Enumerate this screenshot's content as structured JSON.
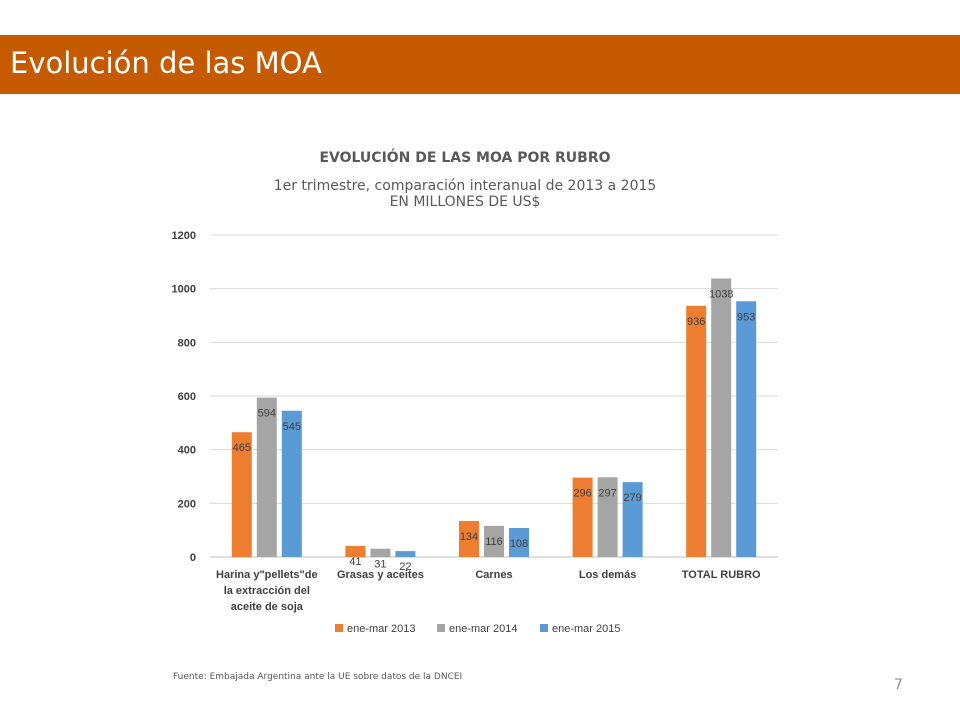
{
  "header": {
    "title": "Evolución de las MOA"
  },
  "chart_data": {
    "type": "bar",
    "title": "EVOLUCIÓN DE LAS MOA POR RUBRO",
    "subtitle": "1er trimestre, comparación interanual de 2013 a 2015",
    "ylabel": "EN MILLONES DE US$",
    "xlabel": "",
    "ylim": [
      0,
      1200
    ],
    "yticks": [
      0,
      200,
      400,
      600,
      800,
      1000,
      1200
    ],
    "grid": true,
    "legend_position": "bottom",
    "categories": [
      [
        "Harina y\"pellets\"de",
        "la extracción del",
        "aceite de soja"
      ],
      [
        "Grasas y aceites"
      ],
      [
        "Carnes"
      ],
      [
        "Los demás"
      ],
      [
        "TOTAL RUBRO"
      ]
    ],
    "series": [
      {
        "name": "ene-mar 2013",
        "color": "#ED7D31",
        "values": [
          465,
          41,
          134,
          296,
          936
        ]
      },
      {
        "name": "ene-mar 2014",
        "color": "#A5A5A5",
        "values": [
          594,
          31,
          116,
          297,
          1038
        ]
      },
      {
        "name": "ene-mar 2015",
        "color": "#5B9BD5",
        "values": [
          545,
          22,
          108,
          279,
          953
        ]
      }
    ]
  },
  "footer": {
    "source": "Fuente: Embajada Argentina ante la UE sobre datos de la DNCEI",
    "page_number": "7"
  }
}
